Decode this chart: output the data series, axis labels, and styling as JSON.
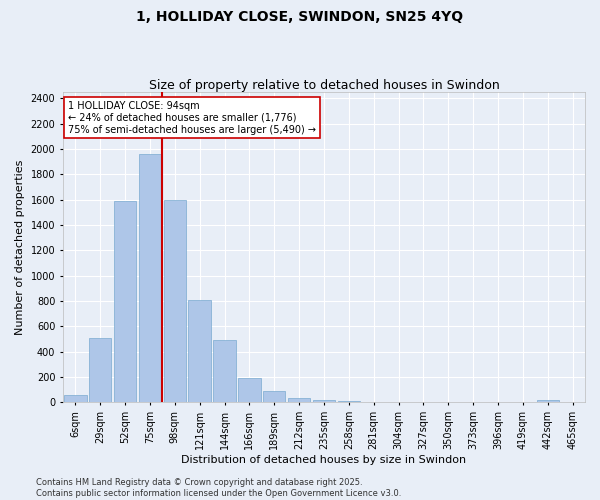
{
  "title": "1, HOLLIDAY CLOSE, SWINDON, SN25 4YQ",
  "subtitle": "Size of property relative to detached houses in Swindon",
  "xlabel": "Distribution of detached houses by size in Swindon",
  "ylabel": "Number of detached properties",
  "categories": [
    "6sqm",
    "29sqm",
    "52sqm",
    "75sqm",
    "98sqm",
    "121sqm",
    "144sqm",
    "166sqm",
    "189sqm",
    "212sqm",
    "235sqm",
    "258sqm",
    "281sqm",
    "304sqm",
    "327sqm",
    "350sqm",
    "373sqm",
    "396sqm",
    "419sqm",
    "442sqm",
    "465sqm"
  ],
  "values": [
    55,
    510,
    1590,
    1960,
    1600,
    810,
    490,
    195,
    88,
    38,
    18,
    10,
    5,
    3,
    2,
    1,
    0,
    0,
    0,
    18,
    0
  ],
  "bar_color": "#aec6e8",
  "bar_edgecolor": "#7aaad0",
  "vline_x_index": 3,
  "vline_color": "#cc0000",
  "annotation_text": "1 HOLLIDAY CLOSE: 94sqm\n← 24% of detached houses are smaller (1,776)\n75% of semi-detached houses are larger (5,490) →",
  "annotation_box_color": "#cc0000",
  "annotation_fill": "#ffffff",
  "ylim": [
    0,
    2450
  ],
  "yticks": [
    0,
    200,
    400,
    600,
    800,
    1000,
    1200,
    1400,
    1600,
    1800,
    2000,
    2200,
    2400
  ],
  "background_color": "#e8eef7",
  "axes_background": "#e8eef7",
  "grid_color": "#ffffff",
  "title_fontsize": 10,
  "subtitle_fontsize": 9,
  "xlabel_fontsize": 8,
  "ylabel_fontsize": 8,
  "tick_fontsize": 7,
  "annot_fontsize": 7,
  "footer_text": "Contains HM Land Registry data © Crown copyright and database right 2025.\nContains public sector information licensed under the Open Government Licence v3.0."
}
